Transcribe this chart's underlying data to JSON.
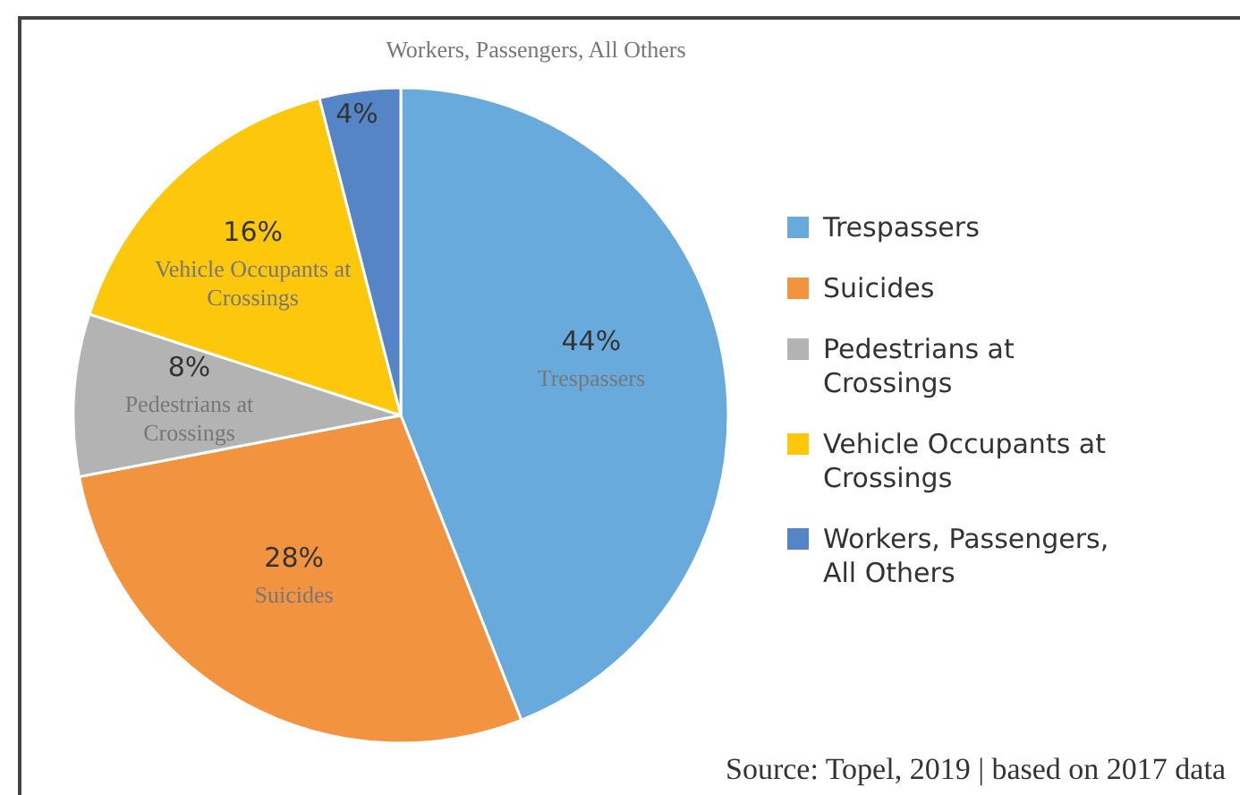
{
  "chart_data": {
    "type": "pie",
    "categories": [
      "Trespassers",
      "Suicides",
      "Pedestrians at Crossings",
      "Vehicle Occupants at Crossings",
      "Workers, Passengers, All Others"
    ],
    "values": [
      44,
      28,
      8,
      16,
      4
    ],
    "value_labels": [
      "44%",
      "28%",
      "8%",
      "16%",
      "4%"
    ],
    "colors": [
      "#69aadc",
      "#f29340",
      "#b3b3b3",
      "#fdc80c",
      "#5585c6"
    ],
    "legend": "right",
    "annotations": [
      "Source: Topel, 2019 | based on 2017 data"
    ]
  }
}
